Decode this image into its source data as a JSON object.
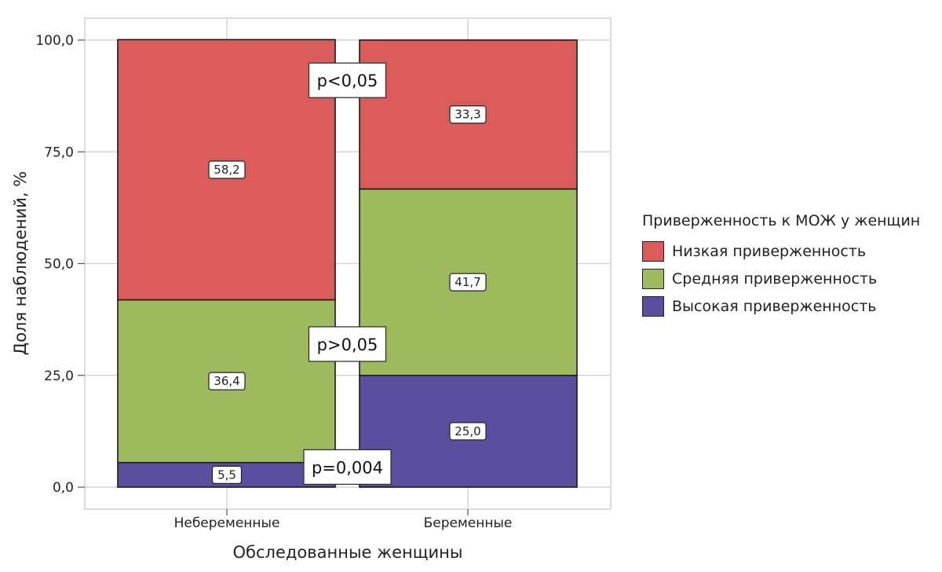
{
  "chart_data": {
    "type": "bar",
    "stacked": true,
    "categories": [
      "Небеременные",
      "Беременные"
    ],
    "series": [
      {
        "name": "Высокая приверженность",
        "values": [
          5.5,
          25.0
        ],
        "labels": [
          "5,5",
          "25,0"
        ],
        "color": "#5a4e9e"
      },
      {
        "name": "Средняя приверженность",
        "values": [
          36.4,
          41.7
        ],
        "labels": [
          "36,4",
          "41,7"
        ],
        "color": "#9dbb5c"
      },
      {
        "name": "Низкая приверженность",
        "values": [
          58.2,
          33.3
        ],
        "labels": [
          "58,2",
          "33,3"
        ],
        "color": "#db5b5b"
      }
    ],
    "xlabel": "Обследованные женщины",
    "ylabel": "Доля наблюдений, %",
    "ylim": [
      0,
      100
    ],
    "yticks": [
      0,
      25,
      50,
      75,
      100
    ],
    "ytick_labels": [
      "0,0",
      "25,0",
      "50,0",
      "75,0",
      "100,0"
    ],
    "grid": true,
    "legend": {
      "title": "Приверженность к МОЖ у женщин",
      "placement": "right",
      "items": [
        "Низкая приверженность",
        "Средняя приверженность",
        "Высокая приверженность"
      ]
    },
    "annotations": [
      {
        "text": "p<0,05",
        "y": 91
      },
      {
        "text": "p>0,05",
        "y": 32
      },
      {
        "text": "p=0,004",
        "y": 4.5
      }
    ]
  }
}
